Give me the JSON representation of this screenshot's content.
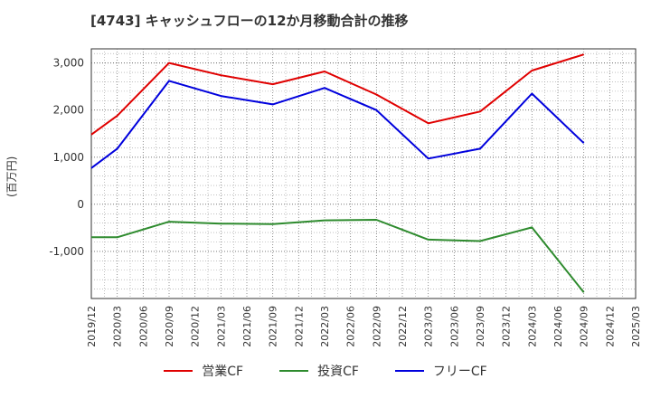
{
  "chart_data": {
    "type": "line",
    "title": "[4743]  キャッシュフローの12か月移動合計の推移",
    "ylabel": "(百万円)",
    "xlabel": "",
    "categories": [
      "2019/12",
      "2020/03",
      "2020/06",
      "2020/09",
      "2020/12",
      "2021/03",
      "2021/06",
      "2021/09",
      "2021/12",
      "2022/03",
      "2022/06",
      "2022/09",
      "2022/12",
      "2023/03",
      "2023/06",
      "2023/09",
      "2023/12",
      "2024/03",
      "2024/06",
      "2024/09",
      "2024/12",
      "2025/03"
    ],
    "ylim": [
      -2000,
      3300
    ],
    "yticks": [
      -1000,
      0,
      1000,
      2000,
      3000
    ],
    "ytick_labels": [
      "-1,000",
      "0",
      "1,000",
      "2,000",
      "3,000"
    ],
    "grid": true,
    "legend_position": "bottom",
    "series": [
      {
        "name": "営業CF",
        "color": "#e00000",
        "values": [
          1480,
          1880,
          null,
          3000,
          null,
          2740,
          null,
          2550,
          null,
          2820,
          null,
          2330,
          null,
          1720,
          null,
          1970,
          null,
          2840,
          null,
          3180,
          null,
          null
        ]
      },
      {
        "name": "投資CF",
        "color": "#2e8b2e",
        "values": [
          -700,
          -700,
          null,
          -370,
          null,
          -410,
          null,
          -420,
          null,
          -340,
          null,
          -330,
          null,
          -750,
          null,
          -780,
          null,
          -490,
          null,
          -1870,
          null,
          null
        ]
      },
      {
        "name": "フリーCF",
        "color": "#0000dd",
        "values": [
          770,
          1180,
          null,
          2620,
          null,
          2300,
          null,
          2120,
          null,
          2470,
          null,
          2000,
          null,
          970,
          null,
          1180,
          null,
          2350,
          null,
          1300,
          null,
          null
        ]
      }
    ]
  }
}
